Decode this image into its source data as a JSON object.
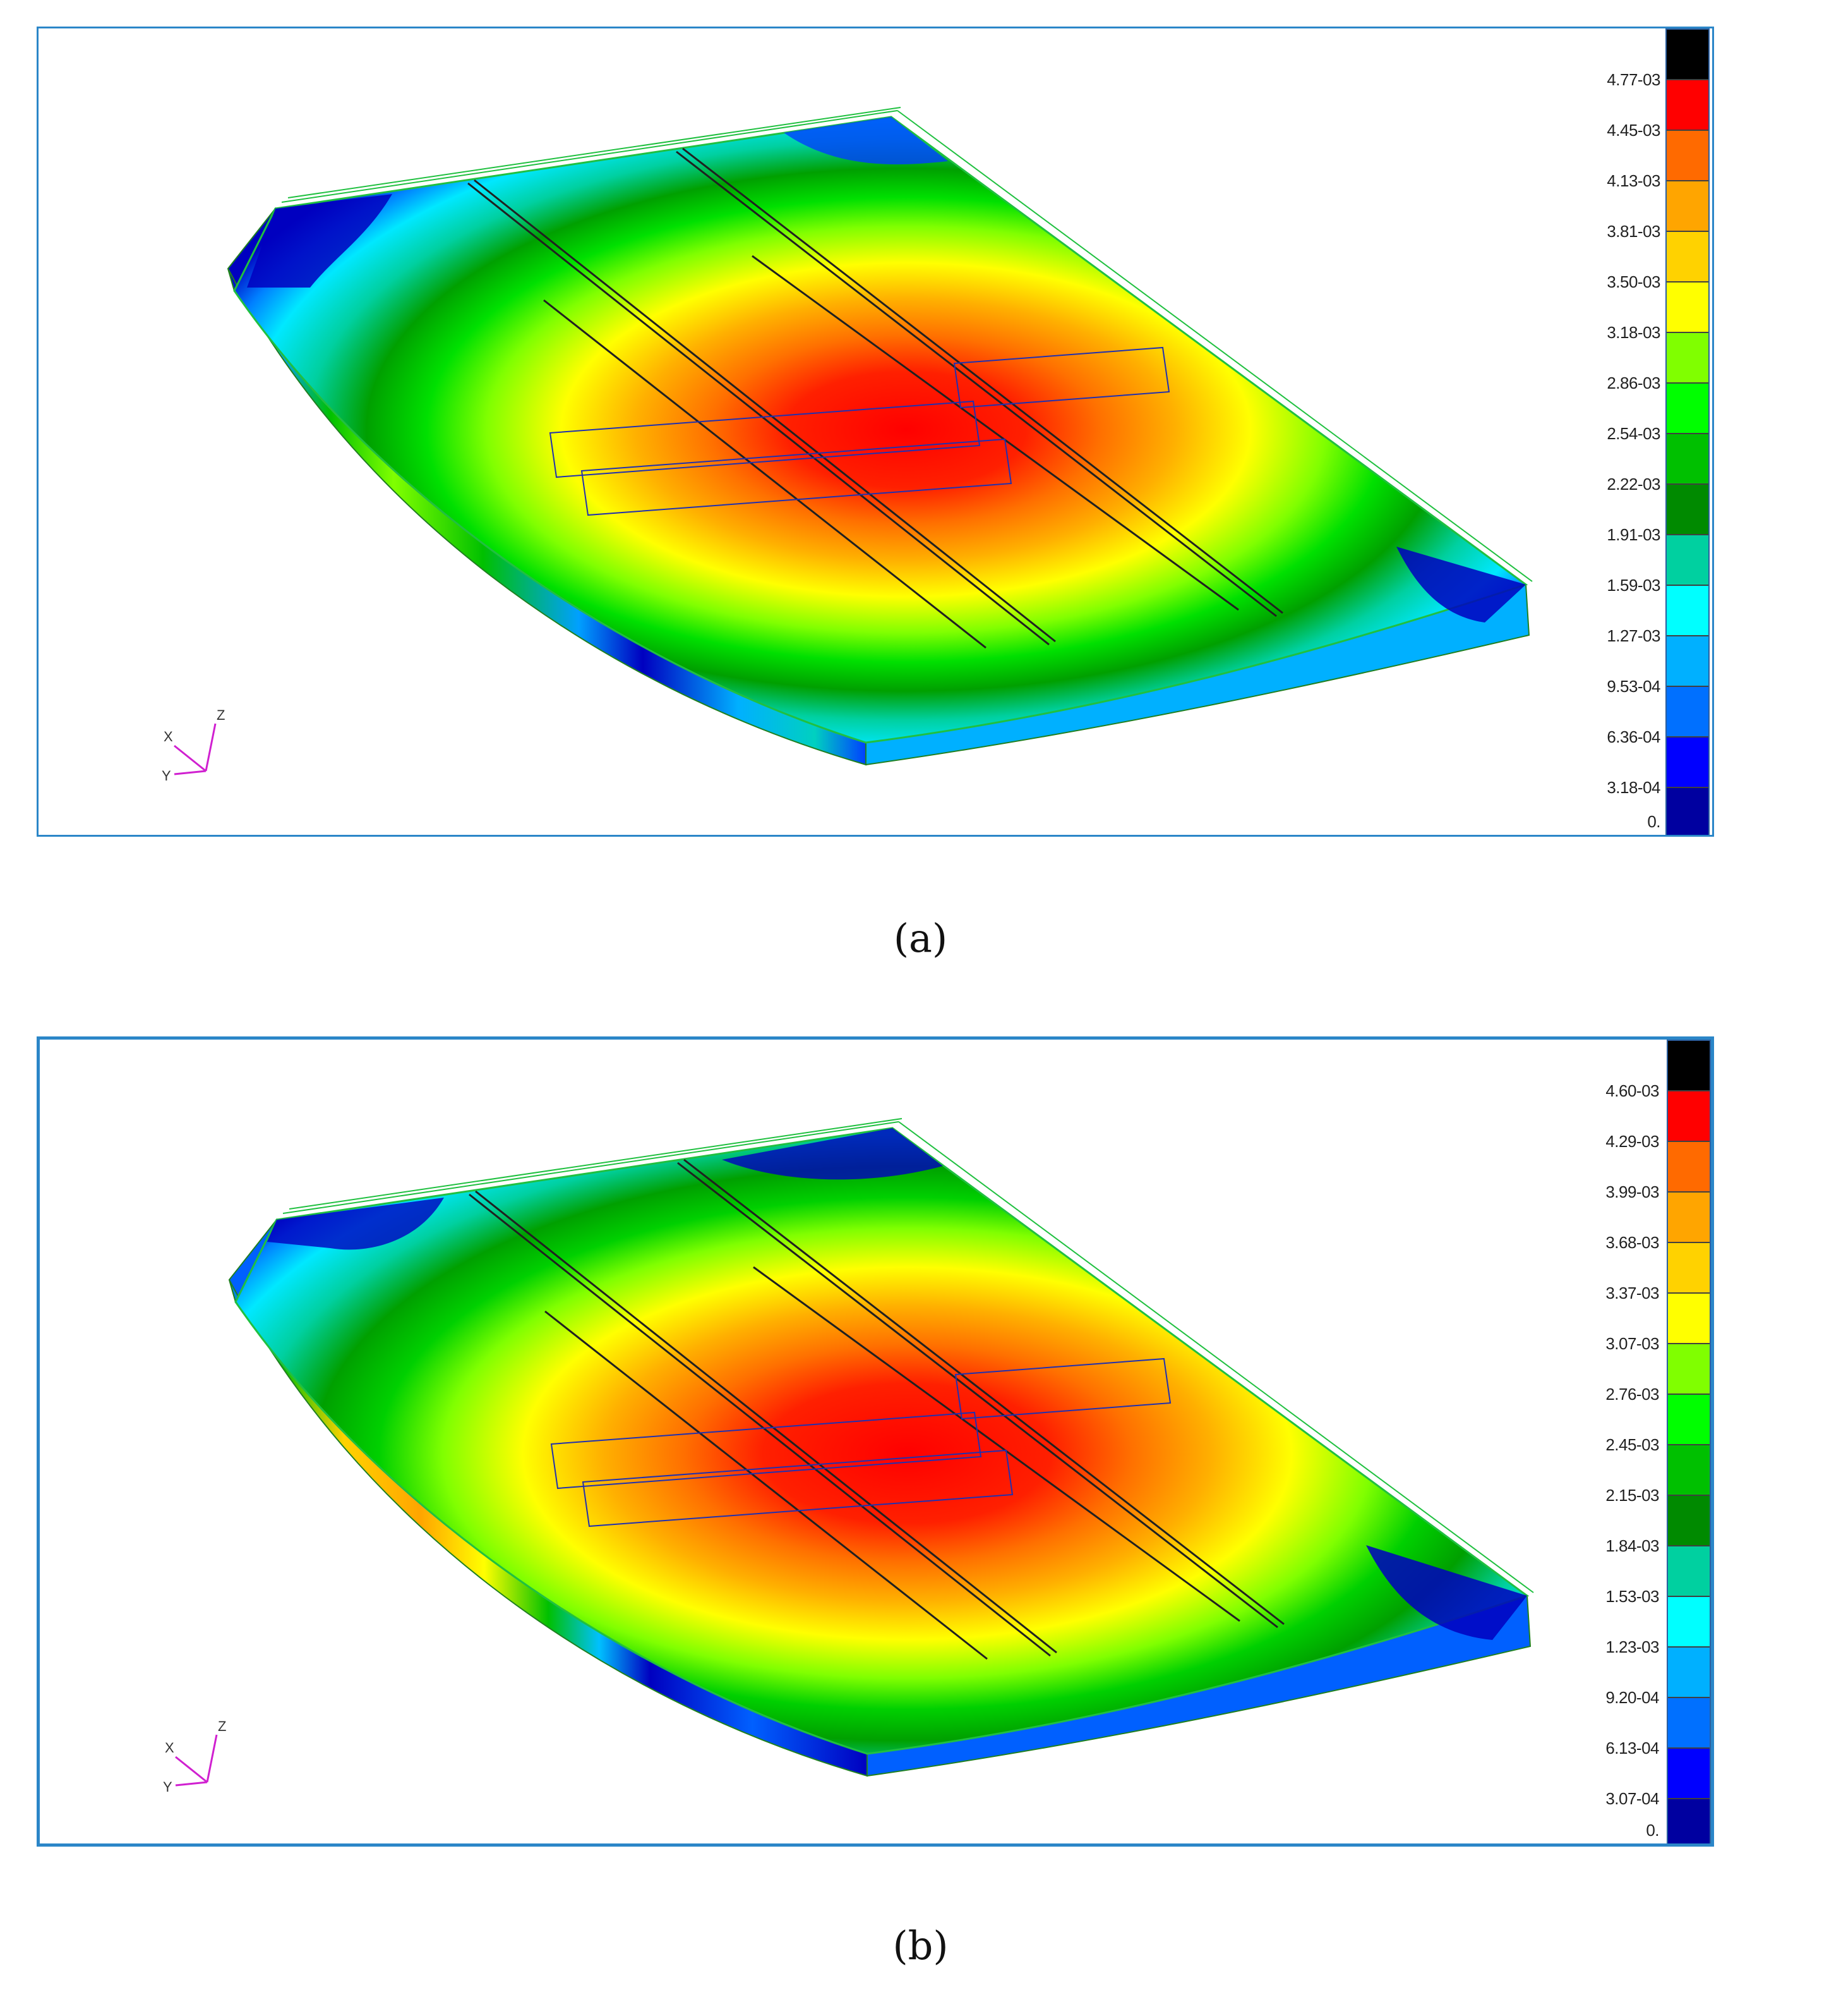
{
  "panels": [
    {
      "caption": "(a)",
      "legend": {
        "labels": [
          "4.77-03",
          "4.45-03",
          "4.13-03",
          "3.81-03",
          "3.50-03",
          "3.18-03",
          "2.86-03",
          "2.54-03",
          "2.22-03",
          "1.91-03",
          "1.59-03",
          "1.27-03",
          "9.53-04",
          "6.36-04",
          "3.18-04",
          "0."
        ]
      },
      "axes": {
        "x": "X",
        "y": "Y",
        "z": "Z"
      }
    },
    {
      "caption": "(b)",
      "legend": {
        "labels": [
          "4.60-03",
          "4.29-03",
          "3.99-03",
          "3.68-03",
          "3.37-03",
          "3.07-03",
          "2.76-03",
          "2.45-03",
          "2.15-03",
          "1.84-03",
          "1.53-03",
          "1.23-03",
          "9.20-04",
          "6.13-04",
          "3.07-04",
          "0."
        ]
      },
      "axes": {
        "x": "X",
        "y": "Y",
        "z": "Z"
      }
    }
  ],
  "legend_colors": [
    "#000000",
    "#ff0000",
    "#ff6a00",
    "#ffa500",
    "#ffd200",
    "#ffff00",
    "#80ff00",
    "#00ff00",
    "#00c000",
    "#008a00",
    "#00d0a0",
    "#00ffff",
    "#00b0ff",
    "#0070ff",
    "#0000ff",
    "#0000a0"
  ]
}
